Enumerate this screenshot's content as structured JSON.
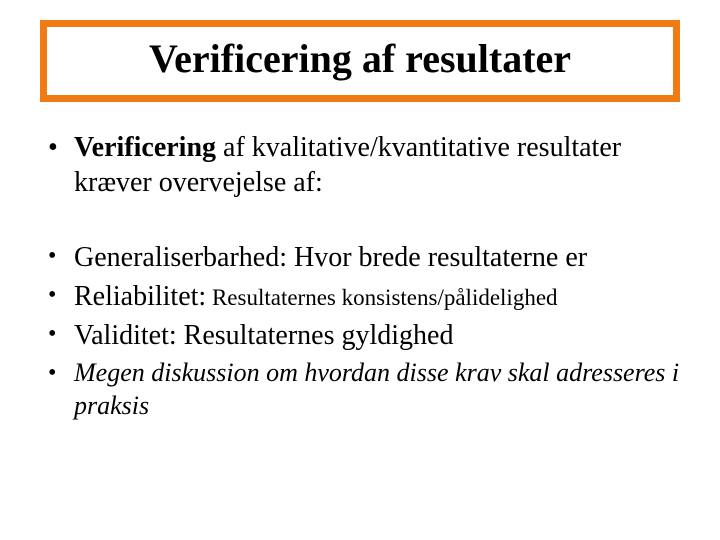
{
  "title": {
    "text": "Verificering af resultater",
    "border_color": "#f07a13",
    "text_color": "#000000",
    "fontsize_pt": 40
  },
  "group1": {
    "bullet": "•",
    "lead_bold": "Verificering",
    "rest": " af kvalitative/kvantitative resultater kræver overvejelse af:",
    "fontsize_pt": 28
  },
  "group2": {
    "bullet": "•",
    "items": [
      {
        "label": "Generaliserbarhed:",
        "desc": " Hvor brede resultaterne er",
        "italic": false
      },
      {
        "label": "Reliabilitet:",
        "desc": " Resultaternes konsistens/pålidelighed",
        "italic": false,
        "desc_small": true
      },
      {
        "label": "Validitet:",
        "desc": " Resultaternes gyldighed",
        "italic": false
      },
      {
        "label": "",
        "desc": "Megen diskussion om hvordan disse krav skal adresseres i praksis",
        "italic": true
      }
    ],
    "label_fontsize_pt": 28,
    "desc_small_fontsize_pt": 23,
    "italic_fontsize_pt": 26
  },
  "colors": {
    "background": "#ffffff",
    "text": "#000000",
    "accent": "#f07a13"
  }
}
